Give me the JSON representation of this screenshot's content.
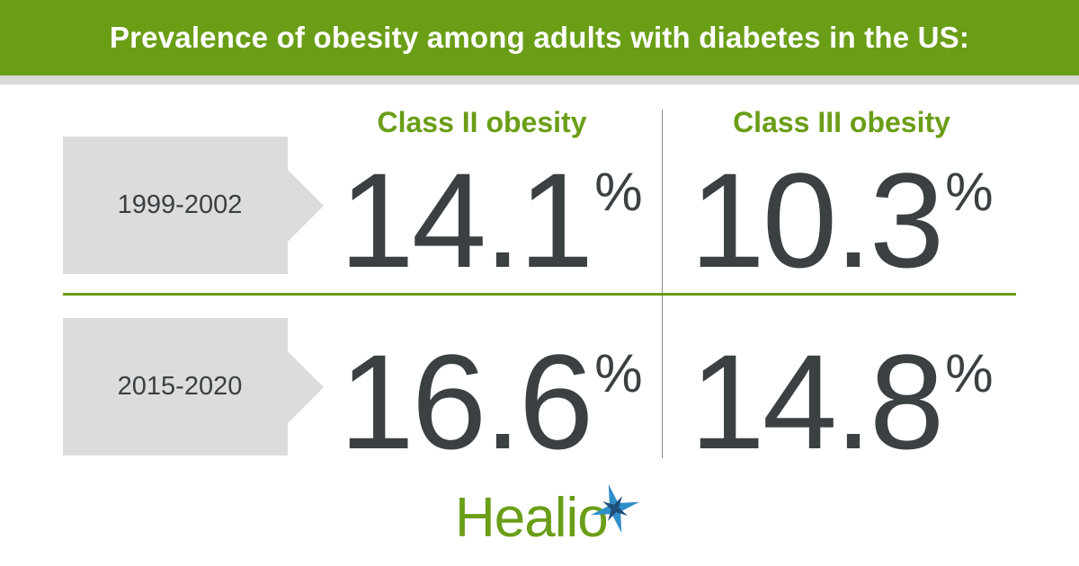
{
  "colors": {
    "brand_green": "#6a9e17",
    "value_text": "#3b4043",
    "label_box": "#dcdcdc",
    "star_blue": "#2e8fc9",
    "star_dark": "#1f4e79"
  },
  "brand": {
    "name": "Healio",
    "icon": "star-compass-icon"
  },
  "chart_data": {
    "type": "table",
    "title": "Prevalence of obesity among adults with diabetes in the US:",
    "columns": [
      "Class II obesity",
      "Class III obesity"
    ],
    "rows": [
      {
        "period": "1999-2002",
        "values": [
          14.1,
          10.3
        ]
      },
      {
        "period": "2015-2020",
        "values": [
          16.6,
          14.8
        ]
      }
    ],
    "unit": "%"
  }
}
